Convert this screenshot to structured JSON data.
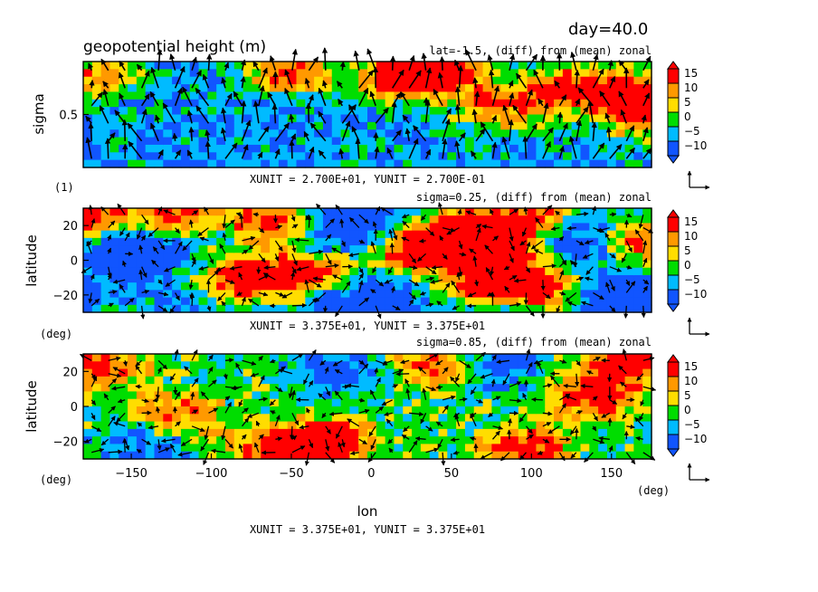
{
  "figure": {
    "title": "geopotential height (m)",
    "day_label": "day=40.0",
    "xlabel": "lon",
    "xunit_bottom": "XUNIT = 3.375E+01, YUNIT = 3.375E+01"
  },
  "chart_data": [
    {
      "type": "heatmap",
      "subtitle": "lat=-1.5, (diff) from (mean) zonal",
      "ylabel": "sigma",
      "yunit_label": "(1)",
      "vector_unit": "XUNIT = 2.700E+01, YUNIT = 2.700E-01",
      "xlim": [
        -180,
        175
      ],
      "ylim": [
        0.0,
        1.0
      ],
      "yticks": [
        0.5
      ],
      "ytick_labels": [
        "0.5"
      ],
      "colorbar": {
        "levels": [
          "15",
          "10",
          "5",
          "0",
          "−5",
          "−10"
        ],
        "vmin": -15,
        "vmax": 20
      },
      "field_note": "zonal-vertical cross section, dominated by blue/green with red/orange near the top and at 110–170 lon",
      "hotspots": [
        {
          "x": -50,
          "y": 0.9,
          "v": 15
        },
        {
          "x": 20,
          "y": 0.85,
          "v": 18
        },
        {
          "x": 45,
          "y": 0.92,
          "v": 16
        },
        {
          "x": 120,
          "y": 0.75,
          "v": 15
        },
        {
          "x": 160,
          "y": 0.7,
          "v": 17
        },
        {
          "x": 80,
          "y": 0.55,
          "v": 12
        },
        {
          "x": 170,
          "y": 0.45,
          "v": 10
        },
        {
          "x": -175,
          "y": 0.85,
          "v": 12
        }
      ]
    },
    {
      "type": "heatmap",
      "subtitle": "sigma=0.25, (diff) from (mean) zonal",
      "ylabel": "latitude",
      "yunit_label": "(deg)",
      "vector_unit": "XUNIT = 3.375E+01, YUNIT = 3.375E+01",
      "xlim": [
        -180,
        175
      ],
      "ylim": [
        -30,
        30
      ],
      "yticks": [
        20,
        0,
        -20
      ],
      "ytick_labels": [
        "20",
        "0",
        "−20"
      ],
      "colorbar": {
        "levels": [
          "15",
          "10",
          "5",
          "0",
          "−5",
          "−10"
        ],
        "vmin": -15,
        "vmax": 20
      },
      "hotspots": [
        {
          "x": -175,
          "y": 25,
          "v": 18
        },
        {
          "x": -120,
          "y": 28,
          "v": 16
        },
        {
          "x": -60,
          "y": 22,
          "v": 19
        },
        {
          "x": -80,
          "y": -10,
          "v": 18
        },
        {
          "x": -40,
          "y": -8,
          "v": 17
        },
        {
          "x": 30,
          "y": 5,
          "v": 20
        },
        {
          "x": 60,
          "y": 18,
          "v": 17
        },
        {
          "x": 70,
          "y": -12,
          "v": 17
        },
        {
          "x": 110,
          "y": -15,
          "v": 16
        },
        {
          "x": 100,
          "y": 25,
          "v": 16
        },
        {
          "x": 175,
          "y": 10,
          "v": 16
        },
        {
          "x": 90,
          "y": 5,
          "v": 14
        }
      ],
      "coldspots": [
        {
          "x": -150,
          "y": 5,
          "v": -14
        },
        {
          "x": -20,
          "y": 20,
          "v": -13
        },
        {
          "x": -5,
          "y": -25,
          "v": -14
        },
        {
          "x": 120,
          "y": 10,
          "v": -13
        },
        {
          "x": 150,
          "y": -20,
          "v": -12
        }
      ]
    },
    {
      "type": "heatmap",
      "subtitle": "sigma=0.85, (diff) from (mean) zonal",
      "ylabel": "latitude",
      "yunit_label": "(deg)",
      "xlabel_unit": "(deg)",
      "xlim": [
        -180,
        175
      ],
      "ylim": [
        -30,
        30
      ],
      "xticks": [
        -150,
        -100,
        -50,
        0,
        50,
        100,
        150
      ],
      "xtick_labels": [
        "−150",
        "−100",
        "−50",
        "0",
        "50",
        "100",
        "150"
      ],
      "yticks": [
        20,
        0,
        -20
      ],
      "ytick_labels": [
        "20",
        "0",
        "−20"
      ],
      "colorbar": {
        "levels": [
          "15",
          "10",
          "5",
          "0",
          "−5",
          "−10"
        ],
        "vmin": -15,
        "vmax": 20
      },
      "hotspots": [
        {
          "x": -170,
          "y": 22,
          "v": 12
        },
        {
          "x": -60,
          "y": -25,
          "v": 13
        },
        {
          "x": -25,
          "y": -20,
          "v": 14
        },
        {
          "x": 40,
          "y": 24,
          "v": 12
        },
        {
          "x": 95,
          "y": -25,
          "v": 14
        },
        {
          "x": 140,
          "y": 5,
          "v": 12
        },
        {
          "x": 160,
          "y": 25,
          "v": 13
        },
        {
          "x": -120,
          "y": -5,
          "v": 8
        }
      ],
      "coldspots": [
        {
          "x": -20,
          "y": 20,
          "v": -10
        },
        {
          "x": 80,
          "y": 24,
          "v": -9
        },
        {
          "x": -140,
          "y": -22,
          "v": -8
        }
      ]
    }
  ]
}
